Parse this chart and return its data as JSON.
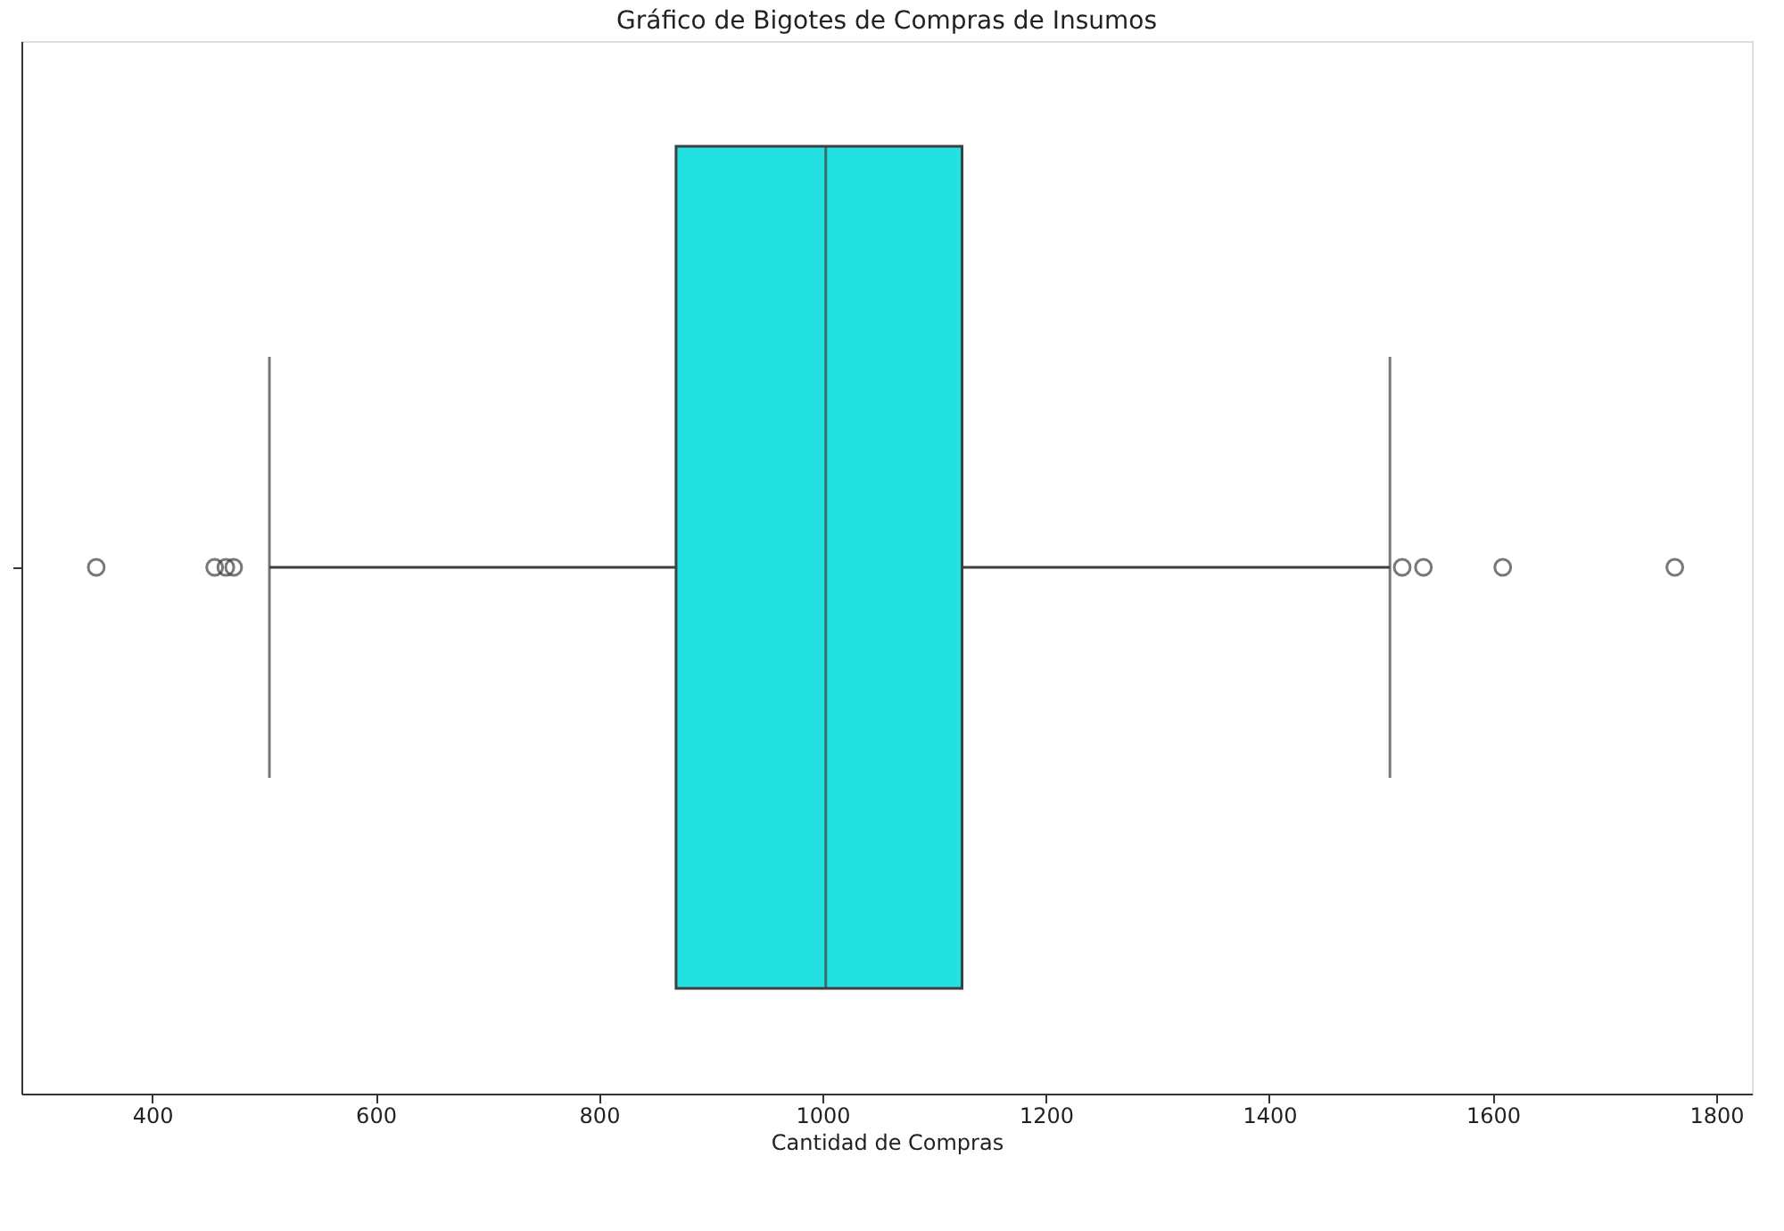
{
  "chart_data": {
    "type": "box",
    "title": "Gráfico de Bigotes de Compras de Insumos",
    "xlabel": "Cantidad de Compras",
    "orientation": "horizontal",
    "categories": [
      null
    ],
    "series": [
      {
        "color": "#22e1e0",
        "boxes": [
          {
            "low": 505,
            "q1": 869,
            "median": 1003,
            "q3": 1125,
            "high": 1508,
            "outliers": [
              350,
              456,
              466,
              473,
              1519,
              1538,
              1609,
              1763
            ]
          }
        ]
      }
    ],
    "xlim": [
      283,
      1832
    ],
    "xticks": [
      400,
      600,
      800,
      1000,
      1200,
      1400,
      1600,
      1800
    ],
    "grid": false
  }
}
